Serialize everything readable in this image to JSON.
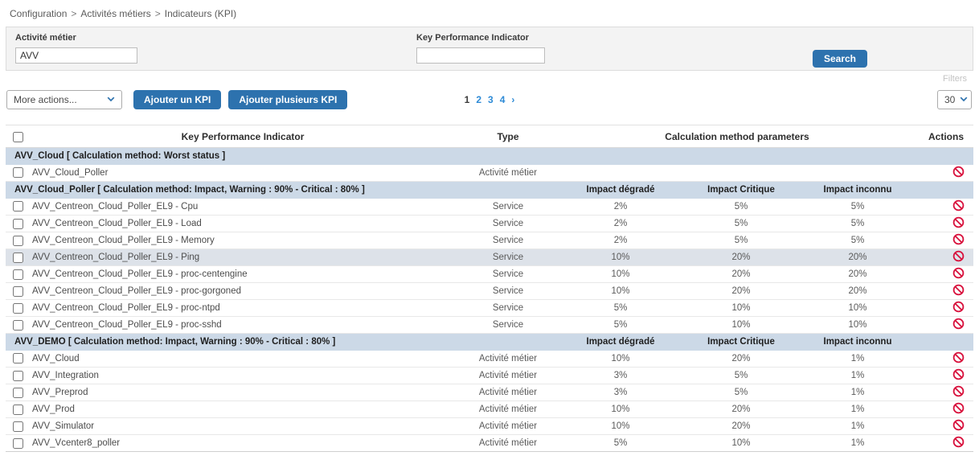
{
  "breadcrumb": {
    "separator": ">",
    "items": [
      "Configuration",
      "Activités métiers",
      "Indicateurs (KPI)"
    ]
  },
  "search_panel": {
    "activity_label": "Activité métier",
    "activity_value": "AVV",
    "kpi_label": "Key Performance Indicator",
    "kpi_value": "",
    "search_button": "Search",
    "filters_link": "Filters"
  },
  "toolbar": {
    "more_actions_label": "More actions...",
    "add_kpi_button": "Ajouter un KPI",
    "add_multiple_kpi_button": "Ajouter plusieurs KPI",
    "page_size_value": "30",
    "pagination": {
      "current": "1",
      "pages": [
        "2",
        "3",
        "4"
      ],
      "next": "›"
    }
  },
  "table": {
    "headers": {
      "kpi": "Key Performance Indicator",
      "type": "Type",
      "parameters": "Calculation method parameters",
      "actions": "Actions"
    },
    "groups": [
      {
        "title": "AVV_Cloud [ Calculation method: Worst status ]",
        "param_headers": [
          "",
          "",
          ""
        ],
        "rows": [
          {
            "name": "AVV_Cloud_Poller",
            "type": "Activité métier",
            "impact_degrade": "",
            "impact_critique": "",
            "impact_inconnu": ""
          }
        ]
      },
      {
        "title": "AVV_Cloud_Poller [ Calculation method: Impact, Warning : 90% - Critical : 80% ]",
        "param_headers": [
          "Impact dégradé",
          "Impact Critique",
          "Impact inconnu"
        ],
        "rows": [
          {
            "name": "AVV_Centreon_Cloud_Poller_EL9 - Cpu",
            "type": "Service",
            "impact_degrade": "2%",
            "impact_critique": "5%",
            "impact_inconnu": "5%"
          },
          {
            "name": "AVV_Centreon_Cloud_Poller_EL9 - Load",
            "type": "Service",
            "impact_degrade": "2%",
            "impact_critique": "5%",
            "impact_inconnu": "5%"
          },
          {
            "name": "AVV_Centreon_Cloud_Poller_EL9 - Memory",
            "type": "Service",
            "impact_degrade": "2%",
            "impact_critique": "5%",
            "impact_inconnu": "5%"
          },
          {
            "name": "AVV_Centreon_Cloud_Poller_EL9 - Ping",
            "type": "Service",
            "impact_degrade": "10%",
            "impact_critique": "20%",
            "impact_inconnu": "20%",
            "highlighted": true
          },
          {
            "name": "AVV_Centreon_Cloud_Poller_EL9 - proc-centengine",
            "type": "Service",
            "impact_degrade": "10%",
            "impact_critique": "20%",
            "impact_inconnu": "20%"
          },
          {
            "name": "AVV_Centreon_Cloud_Poller_EL9 - proc-gorgoned",
            "type": "Service",
            "impact_degrade": "10%",
            "impact_critique": "20%",
            "impact_inconnu": "20%"
          },
          {
            "name": "AVV_Centreon_Cloud_Poller_EL9 - proc-ntpd",
            "type": "Service",
            "impact_degrade": "5%",
            "impact_critique": "10%",
            "impact_inconnu": "10%"
          },
          {
            "name": "AVV_Centreon_Cloud_Poller_EL9 - proc-sshd",
            "type": "Service",
            "impact_degrade": "5%",
            "impact_critique": "10%",
            "impact_inconnu": "10%"
          }
        ]
      },
      {
        "title": "AVV_DEMO [ Calculation method: Impact, Warning : 90% - Critical : 80% ]",
        "param_headers": [
          "Impact dégradé",
          "Impact Critique",
          "Impact inconnu"
        ],
        "rows": [
          {
            "name": "AVV_Cloud",
            "type": "Activité métier",
            "impact_degrade": "10%",
            "impact_critique": "20%",
            "impact_inconnu": "1%"
          },
          {
            "name": "AVV_Integration",
            "type": "Activité métier",
            "impact_degrade": "3%",
            "impact_critique": "5%",
            "impact_inconnu": "1%"
          },
          {
            "name": "AVV_Preprod",
            "type": "Activité métier",
            "impact_degrade": "3%",
            "impact_critique": "5%",
            "impact_inconnu": "1%"
          },
          {
            "name": "AVV_Prod",
            "type": "Activité métier",
            "impact_degrade": "10%",
            "impact_critique": "20%",
            "impact_inconnu": "1%"
          },
          {
            "name": "AVV_Simulator",
            "type": "Activité métier",
            "impact_degrade": "10%",
            "impact_critique": "20%",
            "impact_inconnu": "1%"
          },
          {
            "name": "AVV_Vcenter8_poller",
            "type": "Activité métier",
            "impact_degrade": "5%",
            "impact_critique": "10%",
            "impact_inconnu": "1%"
          }
        ]
      }
    ]
  },
  "icons": {
    "row_action": "no-entry-circle-slash",
    "select_arrow": "chevron-down"
  },
  "colors": {
    "accent_blue": "#2d72ae",
    "link_blue": "#2d8ad6",
    "group_row_bg": "#ccd9e7",
    "highlight_row_bg": "#dde2e9",
    "delete_red": "#d8103c"
  }
}
